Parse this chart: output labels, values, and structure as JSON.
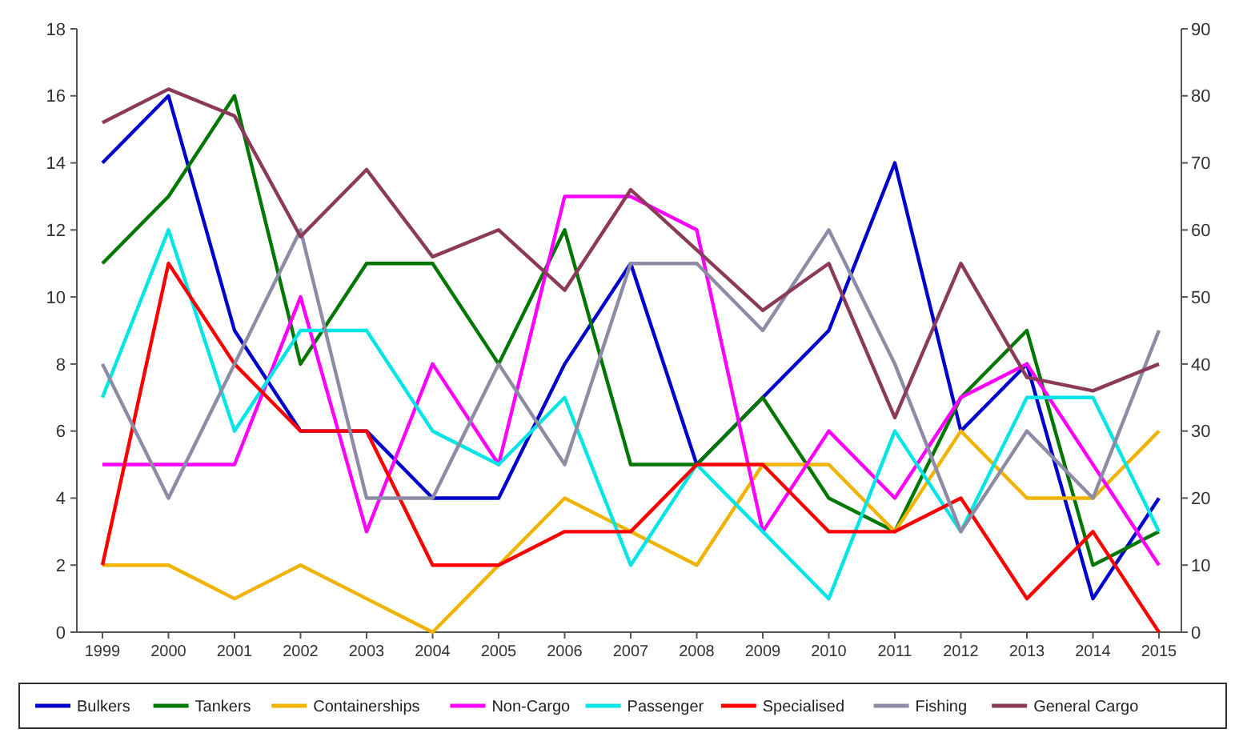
{
  "chart_data": {
    "type": "line",
    "categories": [
      "1999",
      "2000",
      "2001",
      "2002",
      "2003",
      "2004",
      "2005",
      "2006",
      "2007",
      "2008",
      "2009",
      "2010",
      "2011",
      "2012",
      "2013",
      "2014",
      "2015"
    ],
    "series": [
      {
        "name": "Bulkers",
        "color": "#0000cc",
        "values": [
          14,
          16,
          9,
          6,
          6,
          4,
          4,
          8,
          11,
          5,
          7,
          9,
          14,
          6,
          8,
          1,
          4
        ]
      },
      {
        "name": "Tankers",
        "color": "#007700",
        "values": [
          11,
          13,
          16,
          8,
          11,
          11,
          8,
          12,
          5,
          5,
          7,
          4,
          3,
          7,
          9,
          2,
          3
        ]
      },
      {
        "name": "Containerships",
        "color": "#f0b400",
        "values": [
          2,
          2,
          1,
          2,
          1,
          0,
          2,
          4,
          3,
          2,
          5,
          5,
          3,
          6,
          4,
          4,
          6
        ]
      },
      {
        "name": "Non-Cargo",
        "color": "#ff00ff",
        "values": [
          5,
          5,
          5,
          10,
          3,
          8,
          5,
          13,
          13,
          12,
          3,
          6,
          4,
          7,
          8,
          5,
          2
        ]
      },
      {
        "name": "Passenger",
        "color": "#00e5e5",
        "values": [
          7,
          12,
          6,
          9,
          9,
          6,
          5,
          7,
          2,
          5,
          3,
          1,
          6,
          3,
          7,
          7,
          3
        ]
      },
      {
        "name": "Specialised",
        "color": "#ff0000",
        "values": [
          2,
          11,
          8,
          6,
          6,
          2,
          2,
          3,
          3,
          5,
          5,
          3,
          3,
          4,
          1,
          3,
          0
        ]
      },
      {
        "name": "Fishing",
        "color": "#8c8ca6",
        "values": [
          8,
          4,
          8,
          12,
          4,
          4,
          8,
          5,
          11,
          11,
          9,
          12,
          8,
          3,
          6,
          4,
          9
        ]
      },
      {
        "name": "General Cargo",
        "color": "#8b3a5a",
        "axis": "y2",
        "values": [
          76,
          81,
          77,
          59,
          69,
          56,
          60,
          51,
          66,
          57,
          48,
          55,
          32,
          55,
          38,
          36,
          40
        ]
      }
    ],
    "ylim": [
      0,
      18
    ],
    "yticks": [
      0,
      2,
      4,
      6,
      8,
      10,
      12,
      14,
      16,
      18
    ],
    "y2lim": [
      0,
      90
    ],
    "y2ticks": [
      0,
      10,
      20,
      30,
      40,
      50,
      60,
      70,
      80,
      90
    ],
    "grid": false,
    "legend": "bottom",
    "marker": "none",
    "line_style": "solid"
  }
}
